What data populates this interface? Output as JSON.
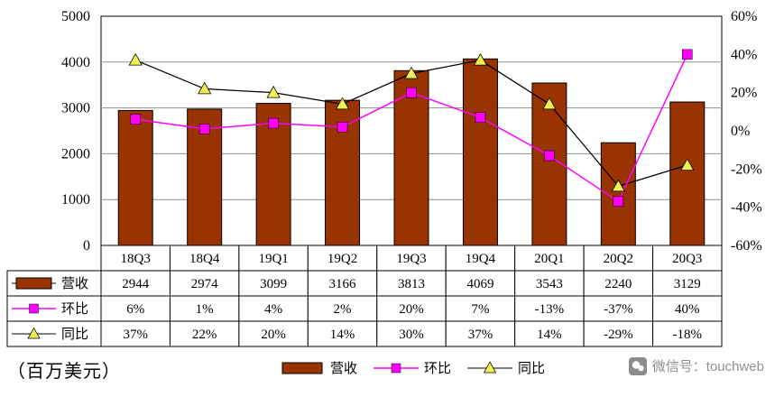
{
  "chart_data": {
    "type": "bar",
    "subtype": "combo-bar-line",
    "title": "",
    "unit_label": "（百万美元）",
    "categories": [
      "18Q3",
      "18Q4",
      "19Q1",
      "19Q2",
      "19Q3",
      "19Q4",
      "20Q1",
      "20Q2",
      "20Q3"
    ],
    "series": [
      {
        "name": "营收",
        "type": "bar",
        "axis": "left",
        "color": "#993300",
        "values": [
          2944,
          2974,
          3099,
          3166,
          3813,
          4069,
          3543,
          2240,
          3129
        ]
      },
      {
        "name": "环比",
        "type": "line",
        "axis": "right",
        "color": "#FF00FF",
        "marker": "square",
        "marker_color": "#FF00FF",
        "values": [
          6,
          1,
          4,
          2,
          20,
          7,
          -13,
          -37,
          40
        ]
      },
      {
        "name": "同比",
        "type": "line",
        "axis": "right",
        "color": "#000000",
        "marker": "triangle",
        "marker_color": "#EEF056",
        "values": [
          37,
          22,
          20,
          14,
          30,
          37,
          14,
          -29,
          -18
        ]
      }
    ],
    "left_axis": {
      "min": 0,
      "max": 5000,
      "tick_step": 1000,
      "tick_labels": [
        "0",
        "1000",
        "2000",
        "3000",
        "4000",
        "5000"
      ]
    },
    "right_axis": {
      "min": -60,
      "max": 60,
      "tick_step": 20,
      "tick_labels": [
        "-60%",
        "-40%",
        "-20%",
        "0%",
        "20%",
        "40%",
        "60%"
      ]
    },
    "grid": true,
    "legend_position": "bottom"
  },
  "table": {
    "rows": [
      {
        "label": "营收",
        "key": "bar",
        "values": [
          "2944",
          "2974",
          "3099",
          "3166",
          "3813",
          "4069",
          "3543",
          "2240",
          "3129"
        ]
      },
      {
        "label": "环比",
        "key": "qoq",
        "values": [
          "6%",
          "1%",
          "4%",
          "2%",
          "20%",
          "7%",
          "-13%",
          "-37%",
          "40%"
        ]
      },
      {
        "label": "同比",
        "key": "yoy",
        "values": [
          "37%",
          "22%",
          "20%",
          "14%",
          "30%",
          "37%",
          "14%",
          "-29%",
          "-18%"
        ]
      }
    ]
  },
  "legend": {
    "items": [
      {
        "label": "营收"
      },
      {
        "label": "环比"
      },
      {
        "label": "同比"
      }
    ]
  },
  "footer": {
    "unit_label": "（百万美元）",
    "watermark": "微信号：touchweb"
  }
}
